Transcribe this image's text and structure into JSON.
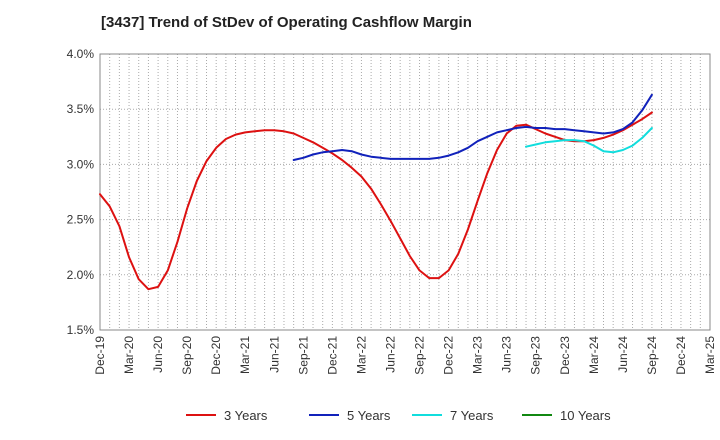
{
  "chart_data": {
    "type": "line",
    "title": "[3437]  Trend of StDev of Operating Cashflow Margin",
    "xlabel": "",
    "ylabel": "",
    "ylim": [
      1.5,
      4.0
    ],
    "y_ticks": [
      1.5,
      2.0,
      2.5,
      3.0,
      3.5,
      4.0
    ],
    "y_tick_labels": [
      "1.5%",
      "2.0%",
      "2.5%",
      "3.0%",
      "3.5%",
      "4.0%"
    ],
    "x_range": [
      0,
      63
    ],
    "x_ticks": [
      0,
      3,
      6,
      9,
      12,
      15,
      18,
      21,
      24,
      27,
      30,
      33,
      36,
      39,
      42,
      45,
      48,
      51,
      54,
      57,
      60,
      63
    ],
    "x_tick_labels": [
      "Dec-19",
      "Mar-20",
      "Jun-20",
      "Sep-20",
      "Dec-20",
      "Mar-21",
      "Jun-21",
      "Sep-21",
      "Dec-21",
      "Mar-22",
      "Jun-22",
      "Sep-22",
      "Dec-22",
      "Mar-23",
      "Jun-23",
      "Sep-23",
      "Dec-23",
      "Mar-24",
      "Jun-24",
      "Sep-24",
      "Dec-24",
      "Mar-25"
    ],
    "grid": true,
    "legend_position": "bottom",
    "series": [
      {
        "name": "3 Years",
        "color": "#dd1111",
        "x": [
          0,
          1,
          2,
          3,
          4,
          5,
          6,
          7,
          8,
          9,
          10,
          11,
          12,
          13,
          14,
          15,
          16,
          17,
          18,
          19,
          20,
          21,
          22,
          23,
          24,
          25,
          26,
          27,
          28,
          29,
          30,
          31,
          32,
          33,
          34,
          35,
          36,
          37,
          38,
          39,
          40,
          41,
          42,
          43,
          44,
          45,
          46,
          47,
          48,
          49,
          50,
          51,
          52,
          53,
          54,
          55,
          56,
          57
        ],
        "values": [
          2.73,
          2.62,
          2.44,
          2.16,
          1.96,
          1.87,
          1.89,
          2.04,
          2.3,
          2.6,
          2.85,
          3.03,
          3.15,
          3.23,
          3.27,
          3.29,
          3.3,
          3.31,
          3.31,
          3.3,
          3.28,
          3.24,
          3.2,
          3.15,
          3.1,
          3.04,
          2.97,
          2.89,
          2.78,
          2.64,
          2.49,
          2.33,
          2.17,
          2.04,
          1.97,
          1.97,
          2.04,
          2.19,
          2.41,
          2.67,
          2.92,
          3.13,
          3.28,
          3.35,
          3.36,
          3.32,
          3.28,
          3.25,
          3.22,
          3.21,
          3.21,
          3.22,
          3.24,
          3.27,
          3.31,
          3.36,
          3.41,
          3.47
        ]
      },
      {
        "name": "5 Years",
        "color": "#1122bb",
        "x": [
          20,
          21,
          22,
          23,
          24,
          25,
          26,
          27,
          28,
          29,
          30,
          31,
          32,
          33,
          34,
          35,
          36,
          37,
          38,
          39,
          40,
          41,
          42,
          43,
          44,
          45,
          46,
          47,
          48,
          49,
          50,
          51,
          52,
          53,
          54,
          55,
          56,
          57
        ],
        "values": [
          3.04,
          3.06,
          3.09,
          3.11,
          3.12,
          3.13,
          3.12,
          3.09,
          3.07,
          3.06,
          3.05,
          3.05,
          3.05,
          3.05,
          3.05,
          3.06,
          3.08,
          3.11,
          3.15,
          3.21,
          3.25,
          3.29,
          3.31,
          3.33,
          3.34,
          3.33,
          3.33,
          3.32,
          3.32,
          3.31,
          3.3,
          3.29,
          3.28,
          3.29,
          3.32,
          3.38,
          3.49,
          3.63
        ]
      },
      {
        "name": "7 Years",
        "color": "#11dddd",
        "x": [
          44,
          45,
          46,
          47,
          48,
          49,
          50,
          51,
          52,
          53,
          54,
          55,
          56,
          57
        ],
        "values": [
          3.16,
          3.18,
          3.2,
          3.21,
          3.22,
          3.22,
          3.21,
          3.17,
          3.12,
          3.11,
          3.13,
          3.17,
          3.24,
          3.33
        ]
      },
      {
        "name": "10 Years",
        "color": "#118811",
        "x": [],
        "values": []
      }
    ]
  }
}
